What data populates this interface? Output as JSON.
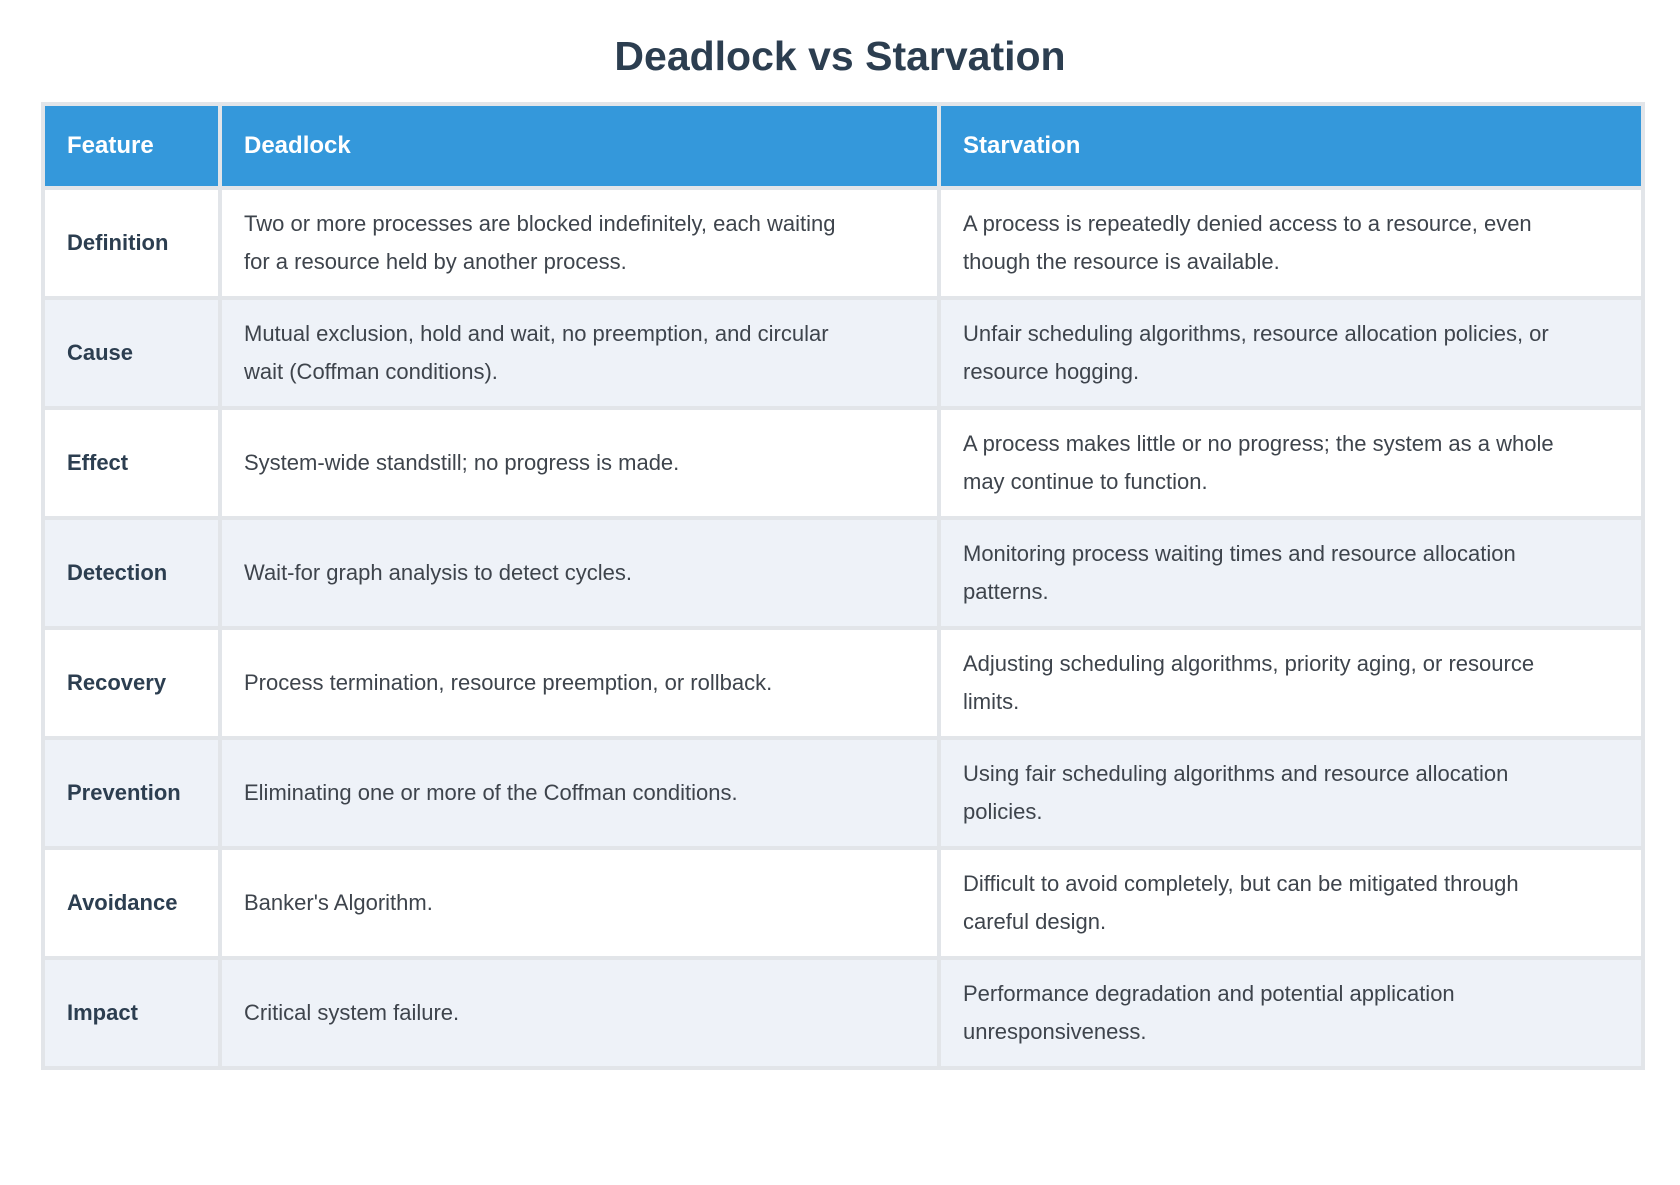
{
  "title": "Deadlock vs Starvation",
  "colors": {
    "header_bg": "#3498db",
    "header_text": "#ffffff",
    "title_text": "#2c3e50",
    "feature_text": "#2c3e50",
    "body_text": "#3e444c",
    "row_bg": "#ffffff",
    "row_alt_bg": "#eef2f8",
    "grid": "#e2e5e9"
  },
  "table": {
    "columns": [
      "Feature",
      "Deadlock",
      "Starvation"
    ],
    "rows": [
      {
        "feature": "Definition",
        "deadlock": "Two or more processes are blocked indefinitely, each waiting for a resource held by another process.",
        "starvation": "A process is repeatedly denied access to a resource, even though the resource is available."
      },
      {
        "feature": "Cause",
        "deadlock": "Mutual exclusion, hold and wait, no preemption, and circular wait (Coffman conditions).",
        "starvation": "Unfair scheduling algorithms, resource allocation policies, or resource hogging."
      },
      {
        "feature": "Effect",
        "deadlock": "System-wide standstill; no progress is made.",
        "starvation": "A process makes little or no progress; the system as a whole may continue to function."
      },
      {
        "feature": "Detection",
        "deadlock": "Wait-for graph analysis to detect cycles.",
        "starvation": "Monitoring process waiting times and resource allocation patterns."
      },
      {
        "feature": "Recovery",
        "deadlock": "Process termination, resource preemption, or rollback.",
        "starvation": "Adjusting scheduling algorithms, priority aging, or resource limits."
      },
      {
        "feature": "Prevention",
        "deadlock": "Eliminating one or more of the Coffman conditions.",
        "starvation": "Using fair scheduling algorithms and resource allocation policies."
      },
      {
        "feature": "Avoidance",
        "deadlock": "Banker's Algorithm.",
        "starvation": "Difficult to avoid completely, but can be mitigated through careful design."
      },
      {
        "feature": "Impact",
        "deadlock": "Critical system failure.",
        "starvation": "Performance degradation and potential application unresponsiveness."
      }
    ]
  }
}
